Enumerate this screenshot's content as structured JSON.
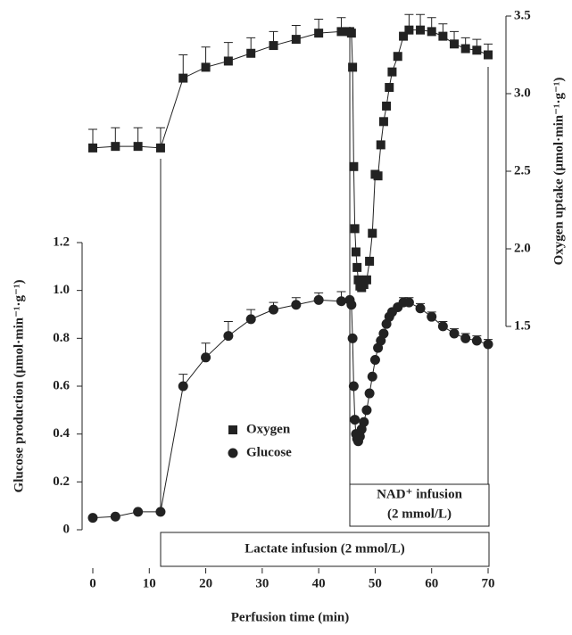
{
  "chart_data": {
    "type": "scatter-line",
    "xlabel": "Perfusion time (min)",
    "ylabel": "Glucose production (μmol·min⁻¹·g⁻¹)",
    "y2label": "Oxygen uptake (μmol·min⁻¹·g⁻¹)",
    "annotations": [
      "Lactate infusion (2 mmol/L)",
      "NAD⁺ infusion",
      "(2 mmol/L)"
    ],
    "x": [
      0,
      4,
      8,
      12,
      16,
      20,
      24,
      28,
      32,
      36,
      40,
      44,
      45.5,
      45.8,
      46,
      46.2,
      46.4,
      46.6,
      46.8,
      47,
      47.3,
      47.6,
      48,
      48.5,
      49,
      49.5,
      50,
      50.5,
      51,
      51.5,
      52,
      52.5,
      53,
      54,
      55,
      56,
      58,
      60,
      62,
      64,
      66,
      68,
      70
    ],
    "xlim": [
      0,
      70
    ],
    "xticks": [
      0,
      10,
      20,
      30,
      40,
      50,
      60,
      70
    ],
    "ylim": [
      0,
      1.2
    ],
    "yticks": [
      0,
      0.2,
      0.4,
      0.6,
      0.8,
      {
        "value": 1,
        "label": "1.0"
      },
      1.2
    ],
    "y2lim": [
      1.5,
      3.5
    ],
    "y2ticks": [
      1.5,
      {
        "value": 2,
        "label": "2.0"
      },
      2.5,
      {
        "value": 3,
        "label": "3.0"
      },
      3.5
    ],
    "series": [
      {
        "name": "Oxygen",
        "marker": "square",
        "color": "#222222",
        "axis": "y2",
        "values": [
          2.65,
          2.66,
          2.66,
          2.65,
          3.1,
          3.17,
          3.21,
          3.26,
          3.31,
          3.35,
          3.39,
          3.4,
          3.4,
          3.39,
          3.17,
          2.53,
          2.13,
          1.98,
          1.88,
          1.8,
          1.76,
          1.75,
          1.77,
          1.8,
          1.92,
          2.1,
          2.48,
          2.47,
          2.67,
          2.82,
          2.92,
          3.04,
          3.14,
          3.24,
          3.37,
          3.41,
          3.41,
          3.4,
          3.37,
          3.32,
          3.29,
          3.28,
          3.25
        ],
        "errors": [
          0.12,
          0.12,
          0.12,
          0.13,
          0.15,
          0.13,
          0.12,
          0.1,
          0.09,
          0.09,
          0.09,
          0.09,
          null,
          null,
          null,
          null,
          null,
          null,
          null,
          null,
          null,
          null,
          null,
          null,
          null,
          null,
          null,
          null,
          null,
          null,
          null,
          null,
          null,
          null,
          null,
          0.1,
          0.1,
          0.09,
          0.08,
          0.08,
          0.07,
          0.07,
          0.07
        ]
      },
      {
        "name": "Glucose",
        "marker": "circle",
        "color": "#222222",
        "values": [
          0.05,
          0.055,
          0.075,
          0.075,
          0.6,
          0.72,
          0.81,
          0.88,
          0.92,
          0.94,
          0.96,
          0.955,
          0.96,
          0.94,
          0.8,
          0.6,
          0.46,
          0.4,
          0.38,
          0.37,
          0.39,
          0.42,
          0.45,
          0.5,
          0.57,
          0.64,
          0.71,
          0.76,
          0.79,
          0.82,
          0.86,
          0.89,
          0.91,
          0.93,
          0.95,
          0.95,
          0.925,
          0.89,
          0.85,
          0.82,
          0.8,
          0.79,
          0.775
        ],
        "errors": [
          null,
          null,
          null,
          null,
          0.05,
          0.06,
          0.06,
          0.04,
          0.03,
          0.03,
          0.03,
          0.04,
          null,
          null,
          null,
          null,
          null,
          null,
          null,
          null,
          null,
          null,
          null,
          null,
          null,
          null,
          null,
          null,
          null,
          null,
          null,
          null,
          null,
          null,
          0.02,
          0.02,
          0.02,
          0.02,
          0.02,
          0.02,
          0.02,
          0.02,
          0.02
        ]
      }
    ]
  }
}
